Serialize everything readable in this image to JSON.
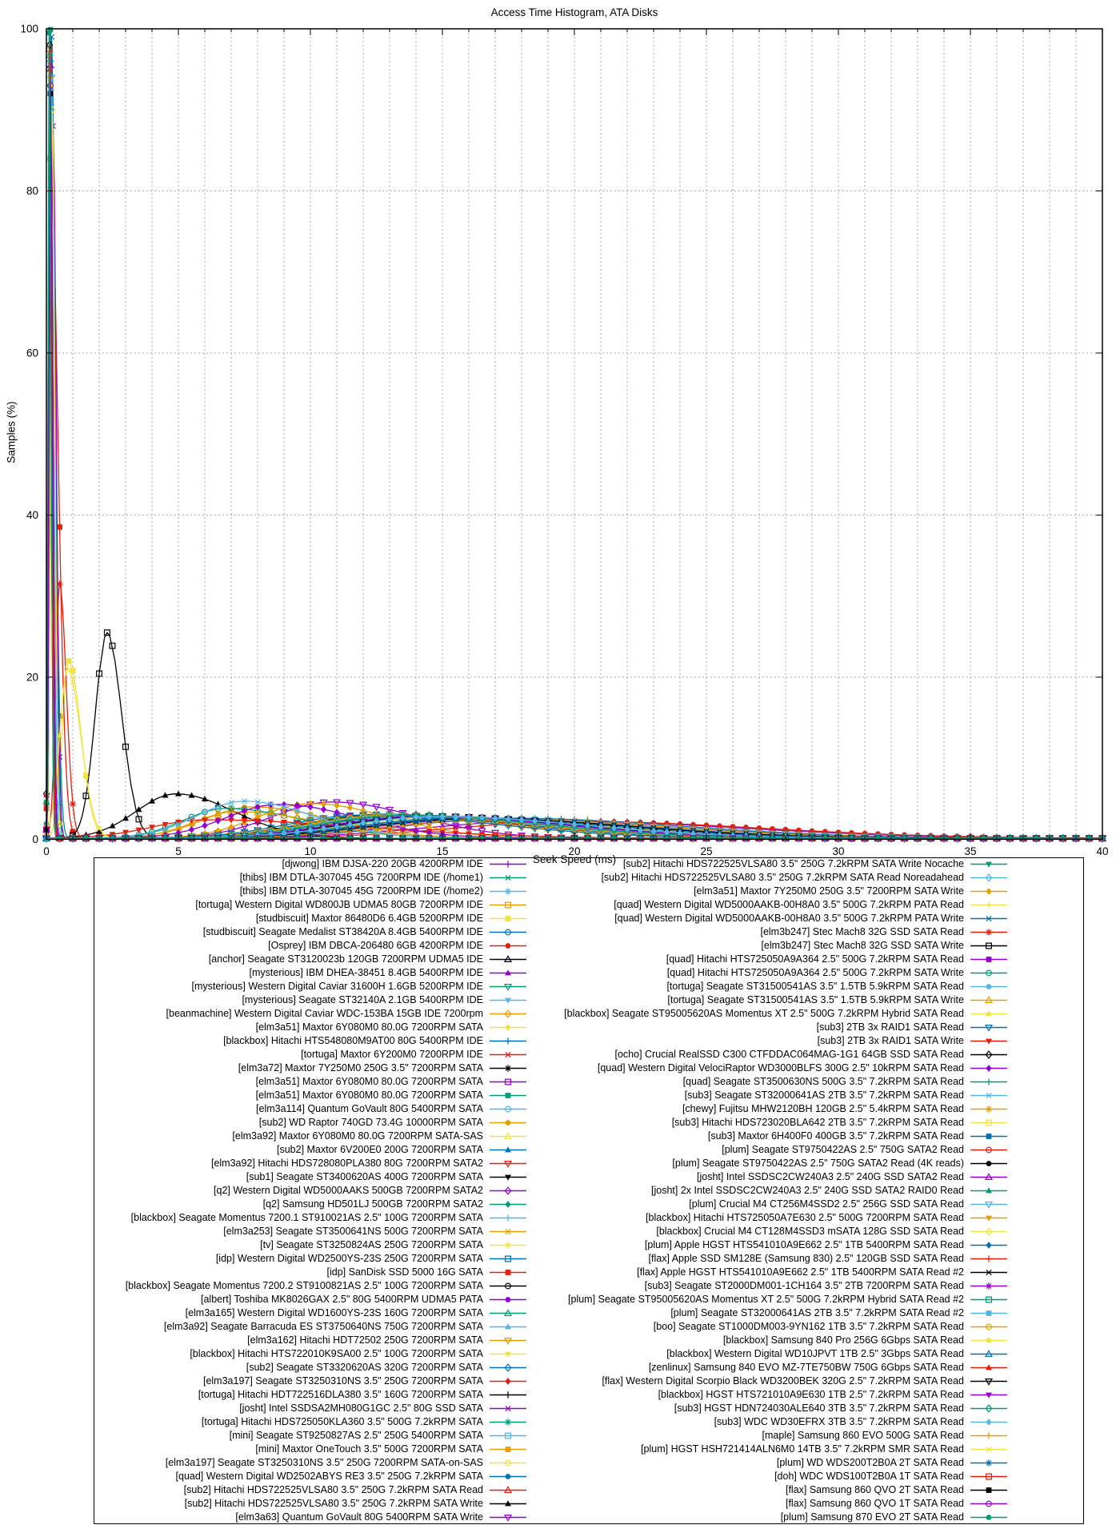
{
  "title": "Access Time Histogram, ATA Disks",
  "chart_data": {
    "type": "line",
    "title": "Access Time Histogram, ATA Disks",
    "xlabel": "Seek Speed (ms)",
    "ylabel": "Samples (%)",
    "xlim": [
      0,
      40
    ],
    "ylim": [
      0,
      100
    ],
    "xticks": [
      0,
      5,
      10,
      15,
      20,
      25,
      30,
      35,
      40
    ],
    "x_minor_step": 1,
    "yticks": [
      0,
      20,
      40,
      60,
      80,
      100
    ],
    "grid": "dashed",
    "grid_color": "#a8a8a8",
    "legend_position": "below-two-columns",
    "legend_rows_per_column": 49,
    "palette": [
      "#9400d3",
      "#009e73",
      "#56b4e9",
      "#e69f00",
      "#f0e442",
      "#0072b2",
      "#e51e10",
      "#000000"
    ],
    "marker_cycle": [
      "plus",
      "cross",
      "asterisk",
      "square-open",
      "square-filled",
      "circle-open",
      "circle-filled",
      "triangle-up-open",
      "triangle-up-filled",
      "triangle-down-open",
      "triangle-down-filled",
      "diamond-open",
      "diamond-filled"
    ],
    "curve_model": "asymmetric-gaussian [peak_x_ms, peak_y_pct, sigma_left, sigma_right] with 0.12% floor",
    "series": [
      {
        "label": "[djwong] IBM DJSA-220 20GB 4200RPM IDE",
        "p": [
          19,
          2.3,
          4.5,
          7
        ]
      },
      {
        "label": "[thibs] IBM DTLA-307045 45G 7200RPM IDE (/home1)",
        "p": [
          13,
          2.9,
          3,
          5.5
        ]
      },
      {
        "label": "[thibs] IBM DTLA-307045 45G 7200RPM IDE (/home2)",
        "p": [
          13.6,
          2.8,
          3,
          5.5
        ]
      },
      {
        "label": "[tortuga] Western Digital WD800JB UDMA5 80GB 7200RPM IDE",
        "p": [
          12.4,
          3.0,
          2.8,
          5
        ]
      },
      {
        "label": "[studbiscuit] Maxtor 86480D6 6.4GB 5200RPM IDE",
        "p": [
          0.85,
          22,
          0.25,
          0.45
        ]
      },
      {
        "label": "[studbiscuit] Seagate Medalist ST38420A 8.4GB 5400RPM IDE",
        "p": [
          16,
          2.5,
          4,
          6
        ]
      },
      {
        "label": "[Osprey] IBM DBCA-206480 6GB 4200RPM IDE",
        "p": [
          20,
          2.2,
          4.5,
          7
        ]
      },
      {
        "label": "[anchor] Seagate ST3120023b 120GB 7200RPM UDMA5 IDE",
        "p": [
          12.9,
          3.0,
          2.9,
          5.2
        ]
      },
      {
        "label": "[mysterious] IBM DHEA-38451 8.4GB 5400RPM IDE",
        "p": [
          16.5,
          2.5,
          4,
          6
        ]
      },
      {
        "label": "[mysterious] Western Digital Caviar 31600H 1.6GB 5200RPM IDE",
        "p": [
          17,
          2.4,
          4,
          6.5
        ]
      },
      {
        "label": "[mysterious] Seagate ST32140A 2.1GB 5400RPM IDE",
        "p": [
          15.8,
          2.55,
          3.8,
          6
        ]
      },
      {
        "label": "[beanmachine] Western Digital Caviar WDC-153BA 15GB IDE 7200rpm",
        "p": [
          13.1,
          2.9,
          3,
          5.2
        ]
      },
      {
        "label": "[elm3a51] Maxtor 6Y080M0 80.0G 7200RPM SATA",
        "p": [
          12.5,
          3.0,
          2.8,
          5
        ]
      },
      {
        "label": "[blackbox] Hitachi HTS548080M9AT00 80G 5400RPM IDE",
        "p": [
          17.5,
          2.6,
          4,
          6.5
        ]
      },
      {
        "label": "[tortuga] Maxtor 6Y200M0 7200RPM IDE",
        "p": [
          12.6,
          3.0,
          2.9,
          5
        ]
      },
      {
        "label": "[elm3a72] Maxtor 7Y250M0 250G 3.5\" 7200RPM SATA",
        "p": [
          13.2,
          3.05,
          3,
          5.2
        ]
      },
      {
        "label": "[elm3a51] Maxtor 6Y080M0 80.0G 7200RPM SATA",
        "p": [
          12.8,
          3.0,
          2.9,
          5
        ]
      },
      {
        "label": "[elm3a51] Maxtor 6Y080M0 80.0G 7200RPM SATA",
        "p": [
          0.15,
          99.9,
          0.06,
          0.18
        ]
      },
      {
        "label": "[elm3a114] Quantum GoVault 80G 5400RPM SATA",
        "p": [
          15.5,
          2.6,
          3.8,
          6
        ]
      },
      {
        "label": "[sub2] WD Raptor 740GD 73.4G 10000RPM SATA",
        "p": [
          7.8,
          4.0,
          1.8,
          3
        ]
      },
      {
        "label": "[elm3a92] Maxtor 6Y080M0 80.0G 7200RPM SATA-SAS",
        "p": [
          12.5,
          2.85,
          2.9,
          5
        ]
      },
      {
        "label": "[sub2] Maxtor 6V200E0 200G 7200RPM SATA",
        "p": [
          12.9,
          3.0,
          2.9,
          5.2
        ]
      },
      {
        "label": "[elm3a92] Hitachi HDS728080PLA380 80G 7200RPM SATA2",
        "p": [
          13.3,
          2.95,
          3,
          5.3
        ]
      },
      {
        "label": "[sub1] Seagate ST3400620AS 400G 7200RPM SATA",
        "p": [
          13.6,
          2.95,
          3.1,
          5.4
        ]
      },
      {
        "label": "[q2] Western Digital WD5000AAKS 500GB 7200RPM SATA2",
        "p": [
          12.8,
          3.05,
          2.9,
          5.1
        ]
      },
      {
        "label": "[q2] Samsung HD501LJ 500GB 7200RPM SATA2",
        "p": [
          13.2,
          3.0,
          3,
          5.2
        ]
      },
      {
        "label": "[blackbox] Seagate Momentus 7200.1 ST910021AS 2.5\" 100G 7200RPM SATA",
        "p": [
          14.6,
          2.85,
          3.4,
          5.6
        ]
      },
      {
        "label": "[elm3a253] Seagate ST3500641NS 500G 7200RPM SATA",
        "p": [
          13.0,
          3.05,
          3,
          5.2
        ]
      },
      {
        "label": "[tv] Seagate ST3250824AS 250G 7200RPM SATA",
        "p": [
          13.4,
          2.95,
          3,
          5.3
        ]
      },
      {
        "label": "[idp] Western Digital WD2500YS-23S 250G 7200RPM SATA",
        "p": [
          12.7,
          3.05,
          2.9,
          5.1
        ]
      },
      {
        "label": "[idp] SanDisk SSD 5000 16G SATA",
        "p": [
          0.15,
          84,
          0.06,
          0.28
        ]
      },
      {
        "label": "[blackbox] Seagate Momentus 7200.2 ST9100821AS 2.5\" 100G 7200RPM SATA",
        "p": [
          14.9,
          2.8,
          3.4,
          5.6
        ]
      },
      {
        "label": "[albert] Toshiba MK8026GAX 2.5\" 80G 5400RPM UDMA5 PATA",
        "p": [
          17.2,
          2.5,
          4,
          6.3
        ]
      },
      {
        "label": "[elm3a165] Western Digital WD1600YS-23S 160G 7200RPM SATA",
        "p": [
          12.8,
          3.0,
          2.9,
          5.1
        ]
      },
      {
        "label": "[elm3a92] Seagate Barracuda ES ST3750640NS 750G 7200RPM SATA",
        "p": [
          13.5,
          2.95,
          3.1,
          5.3
        ]
      },
      {
        "label": "[elm3a162] Hitachi HDT72502 250G 7200RPM SATA",
        "p": [
          13.0,
          3.0,
          3,
          5.2
        ]
      },
      {
        "label": "[blackbox] Hitachi HTS722010K9SA00 2.5\" 100G 7200RPM SATA",
        "p": [
          14.5,
          2.85,
          3.4,
          5.5
        ]
      },
      {
        "label": "[sub2] Seagate ST3320620AS 320G 7200RPM SATA",
        "p": [
          13.2,
          3.05,
          3,
          5.2
        ]
      },
      {
        "label": "[elm3a197] Seagate ST3250310NS 3.5\" 250G 7200RPM SATA",
        "p": [
          13.0,
          2.95,
          3,
          5.2
        ]
      },
      {
        "label": "[tortuga] Hitachi HDT722516DLA380 3.5\" 160G 7200RPM SATA",
        "p": [
          12.8,
          3.05,
          2.9,
          5.1
        ]
      },
      {
        "label": "[josht] Intel SSDSA2MH080G1GC 2.5\" 80G SSD SATA",
        "p": [
          0.25,
          88,
          0.08,
          0.12
        ]
      },
      {
        "label": "[tortuga] Hitachi HDS725050KLA360 3.5\" 500G 7.2kRPM SATA",
        "p": [
          13.0,
          2.95,
          3,
          5.2
        ]
      },
      {
        "label": "[mini] Seagate ST9250827AS 2.5\" 250G 5400RPM SATA",
        "p": [
          16.4,
          2.55,
          3.9,
          6.2
        ]
      },
      {
        "label": "[mini] Maxtor OneTouch 3.5\" 500G 7200RPM SATA",
        "p": [
          13.5,
          2.95,
          3.1,
          5.3
        ]
      },
      {
        "label": "[elm3a197] Seagate ST3250310NS 3.5\" 250G 7200RPM SATA-on-SAS",
        "p": [
          13.0,
          2.95,
          3,
          5.2
        ]
      },
      {
        "label": "[quad] Western Digital WD2502ABYS RE3 3.5\" 250G 7.2kRPM SATA",
        "p": [
          12.7,
          3.1,
          2.9,
          5
        ]
      },
      {
        "label": "[sub2] Hitachi HDS722525VLSA80 3.5\" 250G 7.2kRPM SATA Read",
        "p": [
          13.2,
          3.0,
          3,
          5.2
        ]
      },
      {
        "label": "[sub2] Hitachi HDS722525VLSA80 3.5\" 250G 7.2kRPM SATA Write",
        "p": [
          4.9,
          5.6,
          1.5,
          2.2
        ]
      },
      {
        "label": "[elm3a63] Quantum GoVault 80G 5400RPM SATA Write",
        "p": [
          10.8,
          4.6,
          2.2,
          3.2
        ]
      },
      {
        "label": "[sub2] Hitachi HDS722525VLSA80 3.5\" 250G 7.2kRPM SATA Write Nocache",
        "p": [
          14.0,
          2.85,
          3.2,
          5.4
        ]
      },
      {
        "label": "[sub2] Hitachi HDS722525VLSA80 3.5\" 250G 7.2kRPM SATA Read Noreadahead",
        "p": [
          13.8,
          2.85,
          3.2,
          5.4
        ]
      },
      {
        "label": "[elm3a51] Maxtor 7Y250M0 250G 3.5\" 7200RPM SATA Write",
        "p": [
          10.0,
          4.4,
          2.0,
          3.0
        ]
      },
      {
        "label": "[quad] Western Digital WD5000AAKB-00H8A0 3.5\" 500G 7.2kRPM PATA Read",
        "p": [
          13.0,
          2.95,
          3,
          5.2
        ]
      },
      {
        "label": "[quad] Western Digital WD5000AAKB-00H8A0 3.5\" 500G 7.2kRPM PATA Write",
        "p": [
          0.2,
          99,
          0.07,
          0.12
        ]
      },
      {
        "label": "[elm3b247] Stec Mach8 32G SSD SATA Read",
        "p": [
          0.5,
          31.5,
          0.15,
          0.25
        ]
      },
      {
        "label": "[elm3b247] Stec Mach8 32G SSD SATA Write",
        "p": [
          2.3,
          25.5,
          0.45,
          0.55
        ]
      },
      {
        "label": "[quad] Hitachi HTS725050A9A364 2.5\" 500G 7.2kRPM SATA Read",
        "p": [
          14.4,
          2.85,
          3.3,
          5.5
        ]
      },
      {
        "label": "[quad] Hitachi HTS725050A9A364 2.5\" 500G 7.2kRPM SATA Write",
        "p": [
          6.8,
          3.8,
          1.6,
          3.0
        ]
      },
      {
        "label": "[tortuga] Seagate ST31500541AS 3.5\" 1.5TB 5.9kRPM SATA Read",
        "p": [
          14.0,
          2.85,
          3.2,
          5.5
        ]
      },
      {
        "label": "[tortuga] Seagate ST31500541AS 3.5\" 1.5TB 5.9kRPM SATA Write",
        "p": [
          7.2,
          3.4,
          1.6,
          3.2
        ]
      },
      {
        "label": "[blackbox] Seagate ST95005620AS Momentus XT 2.5\" 500G 7.2kRPM Hybrid SATA Read",
        "p": [
          15.0,
          2.75,
          3.5,
          5.6
        ]
      },
      {
        "label": "[sub3] 2TB 3x RAID1 SATA Read",
        "p": [
          12.0,
          3.0,
          2.8,
          5
        ]
      },
      {
        "label": "[sub3] 2TB 3x RAID1 SATA Write",
        "p": [
          6.0,
          2.4,
          2.0,
          6.0
        ]
      },
      {
        "label": "[ocho] Crucial RealSSD C300 CTFDDAC064MAG-1G1 64GB SSD SATA Read",
        "p": [
          0.12,
          98,
          0.05,
          0.08
        ]
      },
      {
        "label": "[quad] Western Digital VelociRaptor WD3000BLFS 300G 2.5\" 10kRPM SATA Read",
        "p": [
          8.8,
          4.3,
          2.0,
          3.0
        ]
      },
      {
        "label": "[quad] Seagate ST3500630NS 500G 3.5\" 7.2kRPM SATA Read",
        "p": [
          13.0,
          2.95,
          3,
          5.2
        ]
      },
      {
        "label": "[sub3] Seagate ST32000641AS 2TB 3.5\" 7.2kRPM SATA Read",
        "p": [
          7.5,
          4.7,
          1.8,
          2.6
        ]
      },
      {
        "label": "[chewy] Fujitsu MHW2120BH 120GB 2.5\" 5.4kRPM SATA Read",
        "p": [
          17.0,
          2.5,
          4,
          6.3
        ]
      },
      {
        "label": "[sub3] Hitachi HDS723020BLA642 2TB 3.5\" 7.2kRPM SATA Read",
        "p": [
          13.5,
          2.95,
          3.1,
          5.3
        ]
      },
      {
        "label": "[sub3] Maxtor 6H400F0 400GB 3.5\" 7.2kRPM SATA Read",
        "p": [
          13.4,
          3.0,
          3.1,
          5.3
        ]
      },
      {
        "label": "[plum] Seagate ST9750422AS 2.5\" 750G SATA2 Read",
        "p": [
          14.5,
          2.85,
          3.3,
          5.5
        ]
      },
      {
        "label": "[plum] Seagate ST9750422AS 2.5\" 750G SATA2 Read (4K reads)",
        "p": [
          14.8,
          2.8,
          3.4,
          5.5
        ]
      },
      {
        "label": "[josht] Intel SSDSC2CW240A3 2.5\" 240G SSD SATA2 Read",
        "p": [
          0.15,
          95.5,
          0.05,
          0.09
        ]
      },
      {
        "label": "[josht] 2x Intel SSDSC2CW240A3 2.5\" 240G SSD SATA2 RAID0 Read",
        "p": [
          0.14,
          97,
          0.05,
          0.08
        ]
      },
      {
        "label": "[plum] Crucial M4 CT256M4SSD2 2.5\" 256G SSD SATA Read",
        "p": [
          0.2,
          94,
          0.05,
          0.09
        ]
      },
      {
        "label": "[blackbox] Hitachi HTS725050A7E630 2.5\" 500G 7200RPM SATA Read",
        "p": [
          14.2,
          2.85,
          3.3,
          5.4
        ]
      },
      {
        "label": "[blackbox] Crucial M4 CT128M4SSD3 mSATA 128G SSD SATA Read",
        "p": [
          0.22,
          90,
          0.06,
          0.1
        ]
      },
      {
        "label": "[plum] Apple HGST HTS541010A9E662 2.5\" 1TB 5400RPM SATA Read",
        "p": [
          16.0,
          2.6,
          3.8,
          6
        ]
      },
      {
        "label": "[flax] Apple SSD SM128E (Samsung 830) 2.5\" 120GB SSD SATA Read",
        "p": [
          0.1,
          96.5,
          0.04,
          0.07
        ]
      },
      {
        "label": "[flax] Apple HGST HTS541010A9E662 2.5\" 1TB 5400RPM SATA Read #2",
        "p": [
          16.2,
          2.55,
          3.9,
          6
        ]
      },
      {
        "label": "[sub3] Seagate ST2000DM001-1CH164 3.5\" 2TB 7200RPM SATA Read",
        "p": [
          13.0,
          2.95,
          3,
          5.2
        ]
      },
      {
        "label": "[plum] Seagate ST95005620AS Momentus XT 2.5\" 500G 7.2kRPM Hybrid SATA Read #2",
        "p": [
          14.5,
          2.8,
          3.3,
          5.5
        ]
      },
      {
        "label": "[plum] Seagate ST32000641AS 2TB 3.5\" 7.2kRPM SATA Read #2",
        "p": [
          13.2,
          3.0,
          3,
          5.2
        ]
      },
      {
        "label": "[boo] Seagate ST1000DM003-9YN162 1TB 3.5\" 7.2kRPM SATA Read",
        "p": [
          13.0,
          3.0,
          3,
          5.2
        ]
      },
      {
        "label": "[blackbox] Samsung 840 Pro 256G 6Gbps SATA Read",
        "p": [
          0.15,
          93,
          0.05,
          0.09
        ]
      },
      {
        "label": "[blackbox] Western Digital WD10JPVT 1TB 2.5\" 3Gbps SATA Read",
        "p": [
          15.5,
          2.65,
          3.7,
          5.8
        ]
      },
      {
        "label": "[zenlinux] Samsung 840 EVO MZ-7TE750BW 750G 6Gbps SATA Read",
        "p": [
          0.12,
          95,
          0.05,
          0.08
        ]
      },
      {
        "label": "[flax] Western Digital Scorpio Black WD3200BEK 320G 2.5\" 7.2kRPM SATA Read",
        "p": [
          14.5,
          2.85,
          3.3,
          5.5
        ]
      },
      {
        "label": "[blackbox] HGST HTS721010A9E630 1TB 2.5\" 7.2kRPM SATA Read",
        "p": [
          14.2,
          2.85,
          3.3,
          5.4
        ]
      },
      {
        "label": "[sub3] HGST HDN724030ALE640 3TB 3.5\" 7.2kRPM SATA Read",
        "p": [
          13.5,
          2.95,
          3.1,
          5.3
        ]
      },
      {
        "label": "[sub3] WDC WD30EFRX 3TB 3.5\" 7.2kRPM SATA Read",
        "p": [
          14.8,
          2.8,
          3.4,
          5.5
        ]
      },
      {
        "label": "[maple] Samsung 860 EVO 500G SATA Read",
        "p": [
          0.15,
          94,
          0.05,
          0.08
        ]
      },
      {
        "label": "[plum] HGST HSH721414ALN6M0 14TB 3.5\" 7.2kRPM SMR SATA Read",
        "p": [
          0.8,
          21,
          0.3,
          0.5
        ]
      },
      {
        "label": "[plum] WD WDS200T2B0A 2T SATA Read",
        "p": [
          0.15,
          96,
          0.04,
          0.08
        ]
      },
      {
        "label": "[doh] WDC WDS100T2B0A 1T SATA Read",
        "p": [
          0.12,
          97.5,
          0.04,
          0.08
        ]
      },
      {
        "label": "[flax] Samsung 860 QVO 2T SATA Read",
        "p": [
          0.15,
          92,
          0.05,
          0.09
        ]
      },
      {
        "label": "[flax] Samsung 860 QVO 1T SATA Read",
        "p": [
          0.15,
          93,
          0.05,
          0.09
        ]
      },
      {
        "label": "[plum] Samsung 870 EVO 2T SATA Read",
        "p": [
          0.1,
          99.5,
          0.04,
          0.07
        ]
      }
    ]
  }
}
